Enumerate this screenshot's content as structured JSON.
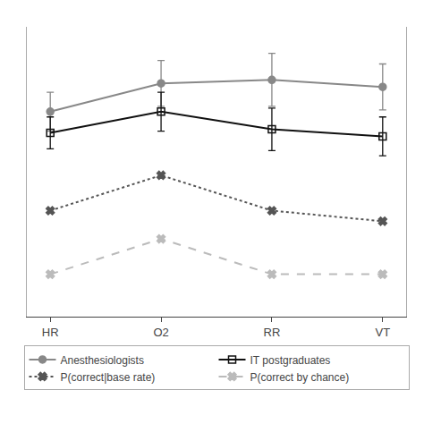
{
  "chart_data": {
    "type": "line",
    "categories": [
      "HR",
      "O2",
      "RR",
      "VT"
    ],
    "series": [
      {
        "name": "Anesthesiologists",
        "color": "#888888",
        "marker": "circle",
        "line_style": "solid",
        "values": [
          0.68,
          0.76,
          0.77,
          0.75
        ],
        "yerr": [
          0.055,
          0.065,
          0.075,
          0.065
        ]
      },
      {
        "name": "IT postgraduates",
        "color": "#111111",
        "marker": "square-open",
        "line_style": "solid",
        "values": [
          0.62,
          0.68,
          0.63,
          0.61
        ],
        "yerr": [
          0.045,
          0.055,
          0.06,
          0.055
        ]
      },
      {
        "name": "P(correct|base rate)",
        "color": "#555555",
        "marker": "x",
        "line_style": "dotted",
        "values": [
          0.4,
          0.5,
          0.4,
          0.37
        ]
      },
      {
        "name": "P(correct by chance)",
        "color": "#bbbbbb",
        "marker": "x",
        "line_style": "dashed",
        "values": [
          0.22,
          0.32,
          0.22,
          0.22
        ]
      }
    ],
    "ylim": [
      0.1,
      0.92
    ],
    "tick_labels": "x",
    "grid": false,
    "legend": "bottom"
  }
}
